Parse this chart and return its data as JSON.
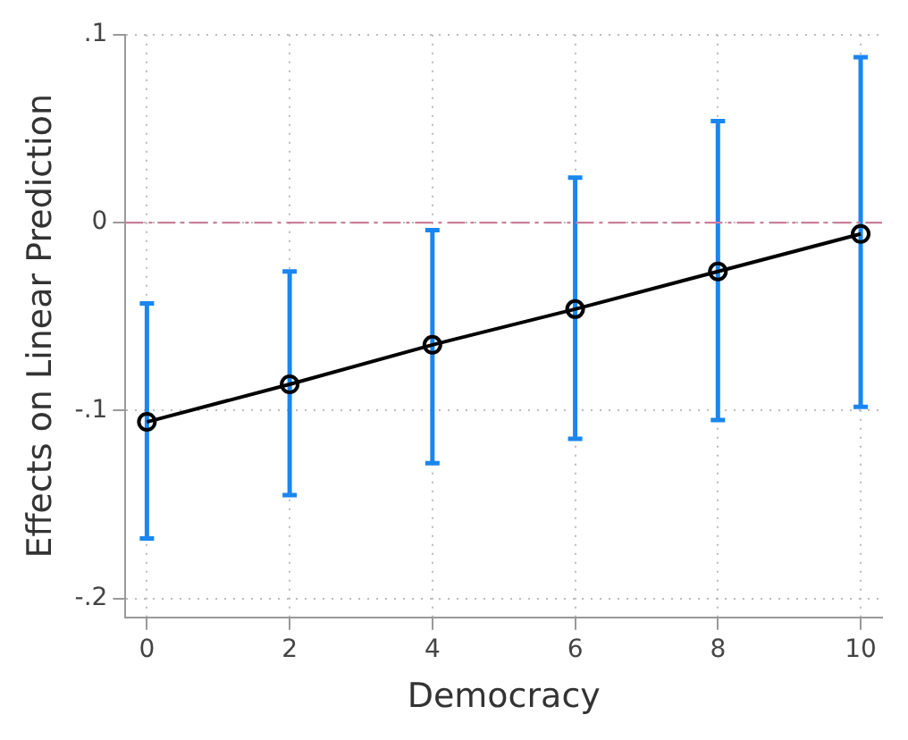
{
  "chart_data": {
    "type": "line",
    "xlabel": "Democracy",
    "ylabel": "Effects on Linear Prediction",
    "x": [
      0,
      2,
      4,
      6,
      8,
      10
    ],
    "series": [
      {
        "color": "#000000",
        "values": [
          -0.106,
          -0.086,
          -0.065,
          -0.046,
          -0.026,
          -0.006
        ],
        "errors": [
          [
            -0.168,
            -0.043
          ],
          [
            -0.145,
            -0.026
          ],
          [
            -0.128,
            -0.004
          ],
          [
            -0.115,
            0.024
          ],
          [
            -0.105,
            0.054
          ],
          [
            -0.098,
            0.088
          ]
        ]
      }
    ],
    "xlim": [
      -0.3,
      10.3
    ],
    "xticks": [
      0,
      2,
      4,
      6,
      8,
      10
    ],
    "ylim": [
      -0.21,
      0.1
    ],
    "yticks": [
      {
        "value": -0.2,
        "label": "-.2"
      },
      {
        "value": -0.1,
        "label": "-.1"
      },
      {
        "value": 0,
        "label": "0"
      },
      {
        "value": 0.1,
        "label": ".1"
      }
    ],
    "ref_lines": [
      {
        "axis": "y",
        "value": 0,
        "color": "#c8809a",
        "line_style": "dashdot"
      }
    ],
    "grid": true,
    "legend": false,
    "marker": "circle",
    "line_style": "solid"
  }
}
